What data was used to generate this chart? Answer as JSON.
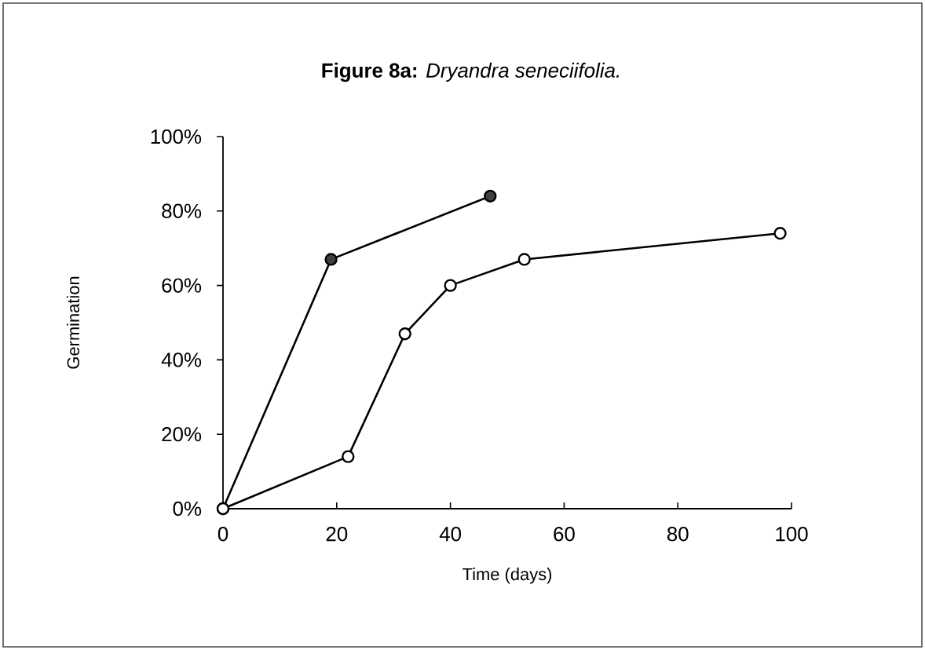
{
  "chart_data": {
    "type": "line",
    "title": "**Figure 8a:** *Dryandra seneciifolia.*",
    "xlabel": "Time (days)",
    "ylabel": "Germination",
    "series": [
      {
        "color": "#404040",
        "x": [
          0,
          19,
          47
        ],
        "values": [
          0,
          67,
          84
        ]
      },
      {
        "color": "#ffffff",
        "x": [
          0,
          22,
          32,
          40,
          53,
          98
        ],
        "values": [
          0,
          14,
          47,
          60,
          67,
          74
        ]
      }
    ],
    "xlim": [
      0,
      100
    ],
    "xticks": [
      0,
      20,
      40,
      60,
      80,
      100
    ],
    "ylim": [
      0,
      100
    ],
    "yticks": [
      {
        "value": 0,
        "label": "0%"
      },
      {
        "value": 20,
        "label": "20%"
      },
      {
        "value": 40,
        "label": "40%"
      },
      {
        "value": 60,
        "label": "60%"
      },
      {
        "value": 80,
        "label": "80%"
      },
      {
        "value": 100,
        "label": "100%"
      }
    ],
    "marker": "circle",
    "line_style": "solid",
    "grid": false
  }
}
